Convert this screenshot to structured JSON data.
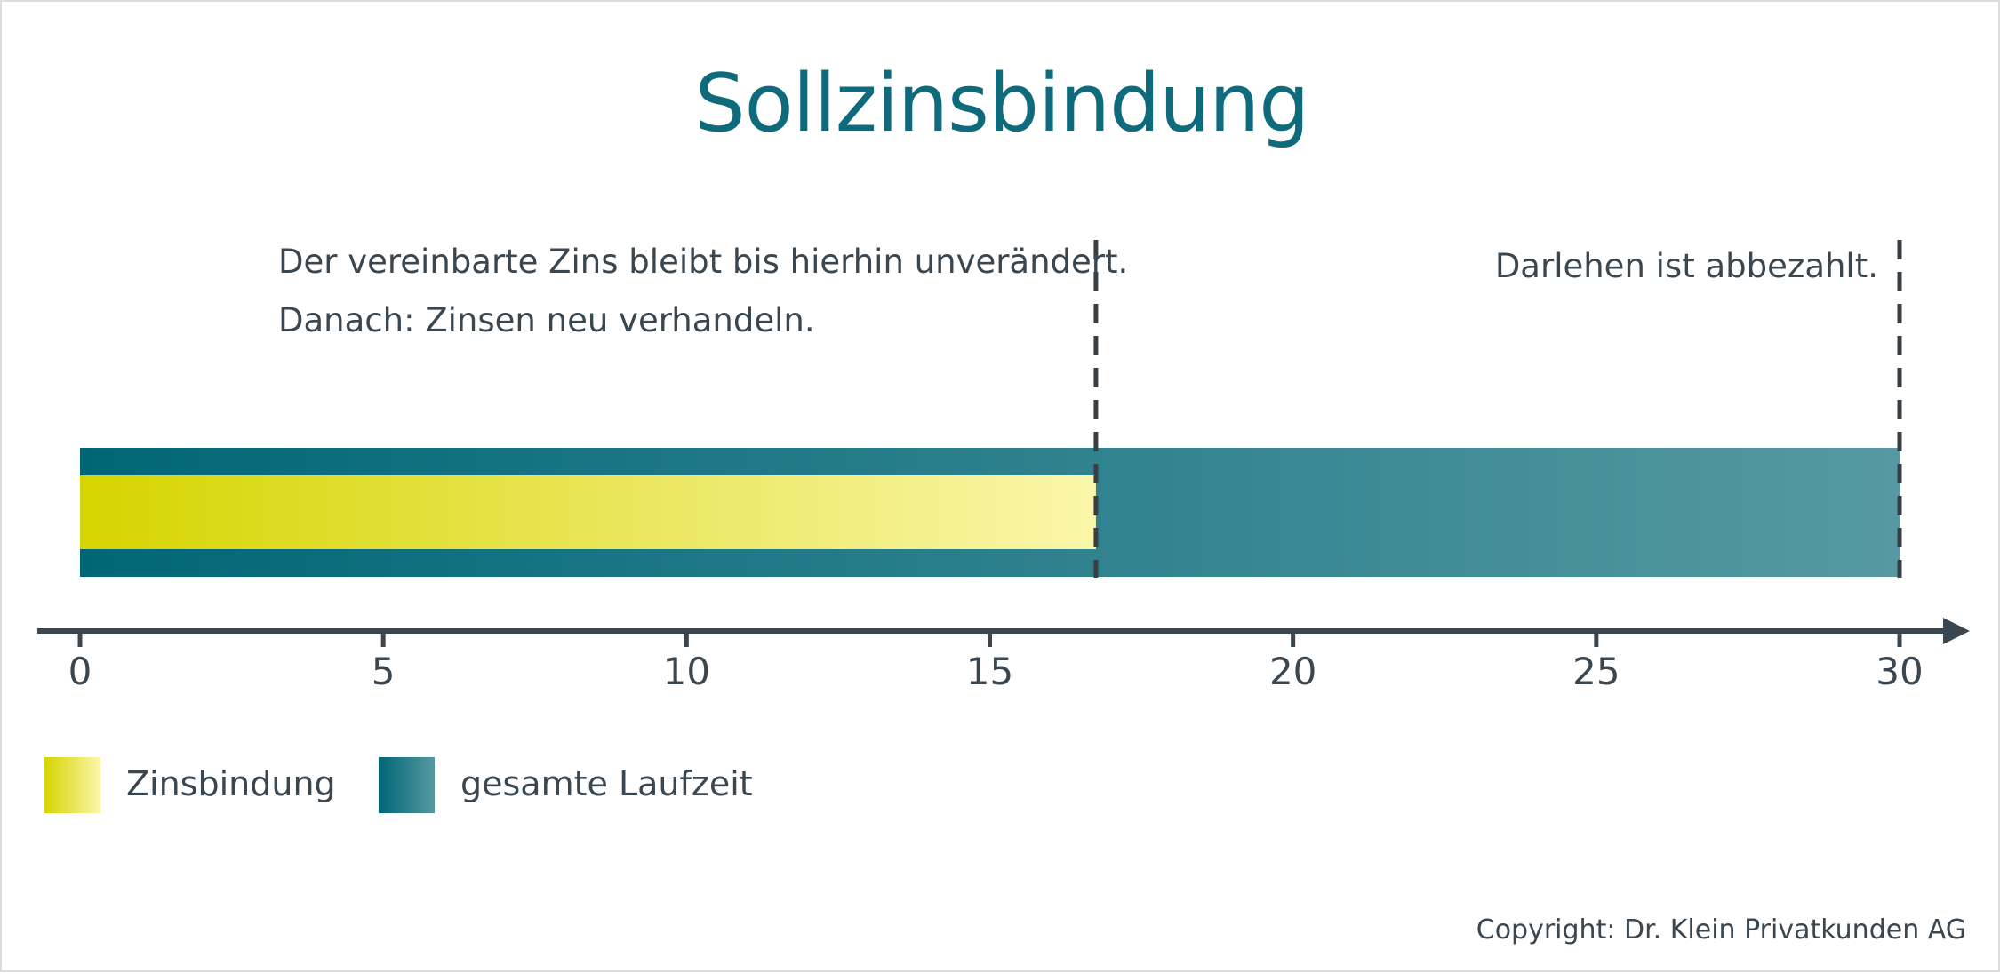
{
  "title": "Sollzinsbindung",
  "chart_data": {
    "type": "bar",
    "orientation": "horizontal",
    "xlim": [
      0,
      30
    ],
    "x_ticks": [
      0,
      5,
      10,
      15,
      20,
      25,
      30
    ],
    "grid": false,
    "series": [
      {
        "name": "gesamte Laufzeit",
        "start": 0,
        "end": 30,
        "color_start": "#006676",
        "color_end": "#5699a2"
      },
      {
        "name": "Zinsbindung",
        "start": 0,
        "end": 16.75,
        "color_start": "#d6d400",
        "color_end": "#fbf6aa"
      }
    ],
    "markers": [
      {
        "x": 16.75,
        "lines": [
          "Der vereinbarte Zins bleibt bis hierhin unverändert.",
          "Danach: Zinsen neu verhandeln."
        ],
        "align": "left-of-start"
      },
      {
        "x": 30,
        "lines": [
          "Darlehen ist abbezahlt."
        ],
        "align": "right"
      }
    ],
    "legend": [
      {
        "label": "Zinsbindung",
        "color_start": "#d6d400",
        "color_end": "#fbf6aa"
      },
      {
        "label": "gesamte Laufzeit",
        "color_start": "#006676",
        "color_end": "#5699a2"
      }
    ],
    "legend_position": "bottom-left"
  },
  "copyright": "Copyright: Dr. Klein Privatkunden AG",
  "colors": {
    "title": "#0f6b7c",
    "text": "#3a4750",
    "axis": "#3a4750"
  }
}
